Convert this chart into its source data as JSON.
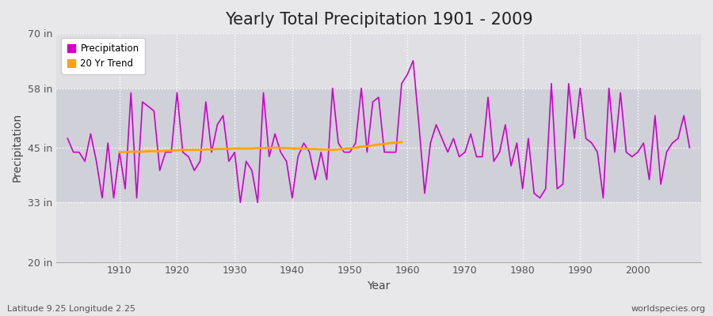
{
  "title": "Yearly Total Precipitation 1901 - 2009",
  "xlabel": "Year",
  "ylabel": "Precipitation",
  "subtitle": "Latitude 9.25 Longitude 2.25",
  "watermark": "worldspecies.org",
  "ylim": [
    20,
    70
  ],
  "yticks": [
    20,
    33,
    45,
    58,
    70
  ],
  "ytick_labels": [
    "20 in",
    "33 in",
    "45 in",
    "58 in",
    "70 in"
  ],
  "years": [
    1901,
    1902,
    1903,
    1904,
    1905,
    1906,
    1907,
    1908,
    1909,
    1910,
    1911,
    1912,
    1913,
    1914,
    1915,
    1916,
    1917,
    1918,
    1919,
    1920,
    1921,
    1922,
    1923,
    1924,
    1925,
    1926,
    1927,
    1928,
    1929,
    1930,
    1931,
    1932,
    1933,
    1934,
    1935,
    1936,
    1937,
    1938,
    1939,
    1940,
    1941,
    1942,
    1943,
    1944,
    1945,
    1946,
    1947,
    1948,
    1949,
    1950,
    1951,
    1952,
    1953,
    1954,
    1955,
    1956,
    1957,
    1958,
    1959,
    1960,
    1961,
    1962,
    1963,
    1964,
    1965,
    1966,
    1967,
    1968,
    1969,
    1970,
    1971,
    1972,
    1973,
    1974,
    1975,
    1976,
    1977,
    1978,
    1979,
    1980,
    1981,
    1982,
    1983,
    1984,
    1985,
    1986,
    1987,
    1988,
    1989,
    1990,
    1991,
    1992,
    1993,
    1994,
    1995,
    1996,
    1997,
    1998,
    1999,
    2000,
    2001,
    2002,
    2003,
    2004,
    2005,
    2006,
    2007,
    2008,
    2009
  ],
  "precipitation": [
    47,
    44,
    44,
    42,
    48,
    42,
    34,
    46,
    34,
    44,
    36,
    57,
    34,
    55,
    54,
    53,
    40,
    44,
    44,
    57,
    44,
    43,
    40,
    42,
    55,
    44,
    50,
    52,
    42,
    44,
    33,
    42,
    40,
    33,
    57,
    43,
    48,
    44,
    42,
    34,
    43,
    46,
    44,
    38,
    44,
    38,
    58,
    46,
    44,
    44,
    46,
    58,
    44,
    55,
    56,
    44,
    44,
    44,
    59,
    61,
    64,
    50,
    35,
    46,
    50,
    47,
    44,
    47,
    43,
    44,
    48,
    43,
    43,
    56,
    42,
    44,
    50,
    41,
    46,
    36,
    47,
    35,
    34,
    36,
    59,
    36,
    37,
    59,
    47,
    58,
    47,
    46,
    44,
    34,
    58,
    44,
    57,
    44,
    43,
    44,
    46,
    38,
    52,
    37,
    44,
    46,
    47,
    52,
    45
  ],
  "trend_years": [
    1910,
    1911,
    1912,
    1913,
    1914,
    1915,
    1916,
    1917,
    1918,
    1919,
    1920,
    1921,
    1922,
    1923,
    1924,
    1925,
    1926,
    1927,
    1928,
    1929,
    1930,
    1931,
    1932,
    1933,
    1934,
    1935,
    1936,
    1937,
    1938,
    1939,
    1940,
    1941,
    1942,
    1943,
    1944,
    1945,
    1946,
    1947,
    1948,
    1949,
    1950,
    1951,
    1952,
    1953,
    1954,
    1955,
    1956,
    1957,
    1958,
    1959
  ],
  "trend_values": [
    44.0,
    44.0,
    44.1,
    44.1,
    44.1,
    44.2,
    44.2,
    44.2,
    44.3,
    44.3,
    44.4,
    44.5,
    44.5,
    44.5,
    44.5,
    44.6,
    44.6,
    44.7,
    44.7,
    44.7,
    44.8,
    44.8,
    44.8,
    44.8,
    44.9,
    44.9,
    44.9,
    45.0,
    44.9,
    44.9,
    44.8,
    44.8,
    44.8,
    44.7,
    44.7,
    44.6,
    44.6,
    44.5,
    44.6,
    44.7,
    44.8,
    45.0,
    45.2,
    45.3,
    45.5,
    45.7,
    45.8,
    46.0,
    46.1,
    46.2
  ],
  "precip_color": "#cc00cc",
  "trend_color": "#ffa500",
  "bg_color": "#e8e8ea",
  "plot_bg_color": "#e0e0e4",
  "inner_band_color": "#d0d0d8",
  "grid_color": "#ffffff",
  "title_fontsize": 15,
  "label_fontsize": 10,
  "tick_fontsize": 9,
  "footer_fontsize": 8
}
